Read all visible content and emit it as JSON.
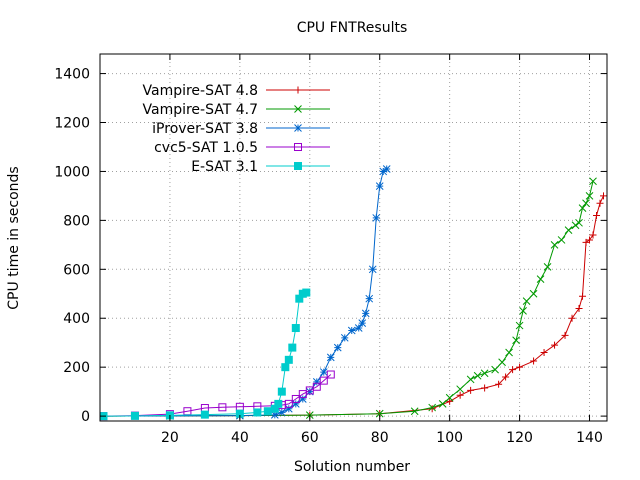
{
  "chart_data": {
    "type": "line",
    "title": "CPU FNTResults",
    "xlabel": "Solution number",
    "ylabel": "CPU time in seconds",
    "xlim": [
      0,
      145
    ],
    "ylim": [
      -20,
      1480
    ],
    "xticks": [
      20,
      40,
      60,
      80,
      100,
      120,
      140
    ],
    "yticks": [
      0,
      200,
      400,
      600,
      800,
      1000,
      1200,
      1400
    ],
    "grid": true,
    "legend_position": "top-left",
    "series": [
      {
        "name": "Vampire-SAT 4.8",
        "color": "#cc0000",
        "marker": "plus",
        "x": [
          1,
          20,
          40,
          60,
          80,
          95,
          100,
          103,
          106,
          110,
          114,
          116,
          118,
          120,
          124,
          127,
          130,
          133,
          135,
          137,
          138,
          139,
          140,
          141,
          142,
          143,
          144
        ],
        "y": [
          0,
          1,
          2,
          4,
          10,
          30,
          60,
          85,
          105,
          115,
          130,
          160,
          190,
          200,
          225,
          260,
          290,
          330,
          400,
          440,
          490,
          710,
          720,
          740,
          820,
          870,
          900
        ]
      },
      {
        "name": "Vampire-SAT 4.7",
        "color": "#009900",
        "marker": "x",
        "x": [
          1,
          20,
          40,
          60,
          80,
          90,
          95,
          98,
          100,
          103,
          106,
          108,
          110,
          113,
          115,
          117,
          119,
          120,
          121,
          122,
          124,
          126,
          128,
          130,
          132,
          134,
          136,
          137,
          138,
          139,
          140,
          141
        ],
        "y": [
          0,
          1,
          2,
          4,
          10,
          20,
          35,
          50,
          75,
          110,
          150,
          165,
          175,
          190,
          220,
          260,
          310,
          370,
          430,
          470,
          500,
          560,
          610,
          700,
          720,
          760,
          780,
          790,
          850,
          870,
          900,
          960
        ]
      },
      {
        "name": "iProver-SAT 3.8",
        "color": "#0066cc",
        "marker": "star",
        "x": [
          1,
          20,
          40,
          50,
          52,
          54,
          56,
          58,
          60,
          62,
          64,
          66,
          68,
          70,
          72,
          74,
          75,
          76,
          77,
          78,
          79,
          80,
          81,
          82
        ],
        "y": [
          0,
          1,
          2,
          5,
          15,
          30,
          50,
          70,
          100,
          140,
          180,
          240,
          280,
          320,
          350,
          360,
          380,
          420,
          480,
          600,
          810,
          940,
          1000,
          1010
        ]
      },
      {
        "name": "cvc5-SAT 1.0.5",
        "color": "#9900cc",
        "marker": "square-open",
        "x": [
          1,
          10,
          20,
          25,
          30,
          35,
          40,
          45,
          50,
          52,
          54,
          56,
          58,
          60,
          62,
          64,
          66
        ],
        "y": [
          0,
          2,
          8,
          20,
          33,
          36,
          38,
          40,
          42,
          45,
          50,
          70,
          90,
          105,
          120,
          145,
          170
        ]
      },
      {
        "name": "E-SAT 3.1",
        "color": "#00cccc",
        "marker": "square-filled",
        "x": [
          1,
          10,
          20,
          30,
          40,
          45,
          48,
          50,
          51,
          52,
          53,
          54,
          55,
          56,
          57,
          58,
          59
        ],
        "y": [
          0,
          1,
          3,
          6,
          10,
          15,
          20,
          30,
          50,
          100,
          200,
          230,
          280,
          360,
          480,
          500,
          505
        ]
      }
    ]
  }
}
